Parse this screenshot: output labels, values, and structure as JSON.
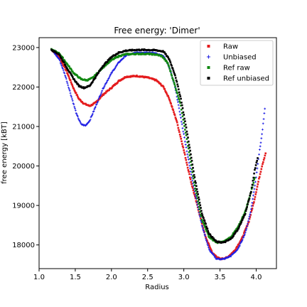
{
  "chart_data": {
    "type": "scatter",
    "title": "Free energy: 'Dimer'",
    "xlabel": "Radius",
    "ylabel": "free energy [kBT]",
    "xlim": [
      1.0,
      4.28
    ],
    "ylim": [
      17400,
      23250
    ],
    "x_ticks": [
      1.0,
      1.5,
      2.0,
      2.5,
      3.0,
      3.5,
      4.0
    ],
    "x_tick_labels": [
      "1.0",
      "1.5",
      "2.0",
      "2.5",
      "3.0",
      "3.5",
      "4.0"
    ],
    "y_ticks": [
      18000,
      19000,
      20000,
      21000,
      22000,
      23000
    ],
    "y_tick_labels": [
      "18000",
      "19000",
      "20000",
      "21000",
      "22000",
      "23000"
    ],
    "grid": false,
    "legend_position": "top-right",
    "series": [
      {
        "name": "Raw",
        "color": "#e41a1c",
        "marker": "square",
        "points": [
          [
            1.17,
            22950
          ],
          [
            1.28,
            22750
          ],
          [
            1.38,
            22400
          ],
          [
            1.48,
            21950
          ],
          [
            1.55,
            21700
          ],
          [
            1.62,
            21580
          ],
          [
            1.7,
            21520
          ],
          [
            1.78,
            21600
          ],
          [
            1.88,
            21800
          ],
          [
            2.0,
            21980
          ],
          [
            2.1,
            22150
          ],
          [
            2.2,
            22260
          ],
          [
            2.35,
            22280
          ],
          [
            2.5,
            22240
          ],
          [
            2.62,
            22170
          ],
          [
            2.72,
            22000
          ],
          [
            2.8,
            21700
          ],
          [
            2.9,
            21150
          ],
          [
            3.0,
            20400
          ],
          [
            3.1,
            19600
          ],
          [
            3.2,
            18900
          ],
          [
            3.3,
            18200
          ],
          [
            3.4,
            17780
          ],
          [
            3.5,
            17640
          ],
          [
            3.6,
            17680
          ],
          [
            3.7,
            17850
          ],
          [
            3.8,
            18150
          ],
          [
            3.9,
            18600
          ],
          [
            3.97,
            19100
          ],
          [
            4.03,
            19600
          ],
          [
            4.08,
            20000
          ],
          [
            4.13,
            20320
          ]
        ]
      },
      {
        "name": "Unbiased",
        "color": "#1f1fe5",
        "marker": "plus",
        "points": [
          [
            1.17,
            22950
          ],
          [
            1.28,
            22700
          ],
          [
            1.36,
            22300
          ],
          [
            1.44,
            21800
          ],
          [
            1.52,
            21300
          ],
          [
            1.58,
            21060
          ],
          [
            1.64,
            21020
          ],
          [
            1.7,
            21150
          ],
          [
            1.78,
            21500
          ],
          [
            1.88,
            21950
          ],
          [
            2.0,
            22350
          ],
          [
            2.1,
            22620
          ],
          [
            2.2,
            22800
          ],
          [
            2.35,
            22870
          ],
          [
            2.5,
            22880
          ],
          [
            2.62,
            22850
          ],
          [
            2.72,
            22780
          ],
          [
            2.8,
            22500
          ],
          [
            2.88,
            22000
          ],
          [
            2.95,
            21300
          ],
          [
            3.05,
            20300
          ],
          [
            3.15,
            19350
          ],
          [
            3.25,
            18500
          ],
          [
            3.35,
            17880
          ],
          [
            3.45,
            17650
          ],
          [
            3.55,
            17640
          ],
          [
            3.65,
            17720
          ],
          [
            3.75,
            17900
          ],
          [
            3.85,
            18300
          ],
          [
            3.93,
            18900
          ],
          [
            3.99,
            19600
          ],
          [
            4.04,
            20300
          ],
          [
            4.08,
            20800
          ],
          [
            4.12,
            21450
          ]
        ]
      },
      {
        "name": "Ref raw",
        "color": "#118811",
        "marker": "square",
        "points": [
          [
            1.17,
            22950
          ],
          [
            1.28,
            22850
          ],
          [
            1.38,
            22600
          ],
          [
            1.48,
            22350
          ],
          [
            1.58,
            22200
          ],
          [
            1.66,
            22170
          ],
          [
            1.74,
            22230
          ],
          [
            1.82,
            22380
          ],
          [
            1.92,
            22560
          ],
          [
            2.0,
            22680
          ],
          [
            2.1,
            22780
          ],
          [
            2.2,
            22830
          ],
          [
            2.35,
            22840
          ],
          [
            2.5,
            22840
          ],
          [
            2.62,
            22820
          ],
          [
            2.7,
            22780
          ],
          [
            2.78,
            22600
          ],
          [
            2.85,
            22200
          ],
          [
            2.95,
            21600
          ],
          [
            3.05,
            20600
          ],
          [
            3.15,
            19500
          ],
          [
            3.25,
            18650
          ],
          [
            3.35,
            18200
          ],
          [
            3.45,
            18060
          ],
          [
            3.55,
            18080
          ],
          [
            3.65,
            18200
          ],
          [
            3.75,
            18450
          ],
          [
            3.85,
            18850
          ],
          [
            3.93,
            19350
          ],
          [
            3.98,
            19700
          ]
        ]
      },
      {
        "name": "Ref unbiased",
        "color": "#000000",
        "marker": "square",
        "points": [
          [
            1.17,
            22950
          ],
          [
            1.28,
            22820
          ],
          [
            1.38,
            22500
          ],
          [
            1.48,
            22200
          ],
          [
            1.55,
            22030
          ],
          [
            1.62,
            21980
          ],
          [
            1.7,
            22030
          ],
          [
            1.78,
            22250
          ],
          [
            1.88,
            22530
          ],
          [
            2.0,
            22760
          ],
          [
            2.1,
            22870
          ],
          [
            2.2,
            22920
          ],
          [
            2.35,
            22940
          ],
          [
            2.5,
            22940
          ],
          [
            2.62,
            22930
          ],
          [
            2.72,
            22900
          ],
          [
            2.8,
            22700
          ],
          [
            2.88,
            22300
          ],
          [
            2.96,
            21700
          ],
          [
            3.05,
            20800
          ],
          [
            3.15,
            19700
          ],
          [
            3.25,
            18800
          ],
          [
            3.35,
            18280
          ],
          [
            3.45,
            18080
          ],
          [
            3.55,
            18060
          ],
          [
            3.65,
            18150
          ],
          [
            3.75,
            18400
          ],
          [
            3.85,
            18800
          ],
          [
            3.93,
            19350
          ],
          [
            3.98,
            19900
          ],
          [
            4.02,
            20200
          ]
        ]
      }
    ]
  }
}
